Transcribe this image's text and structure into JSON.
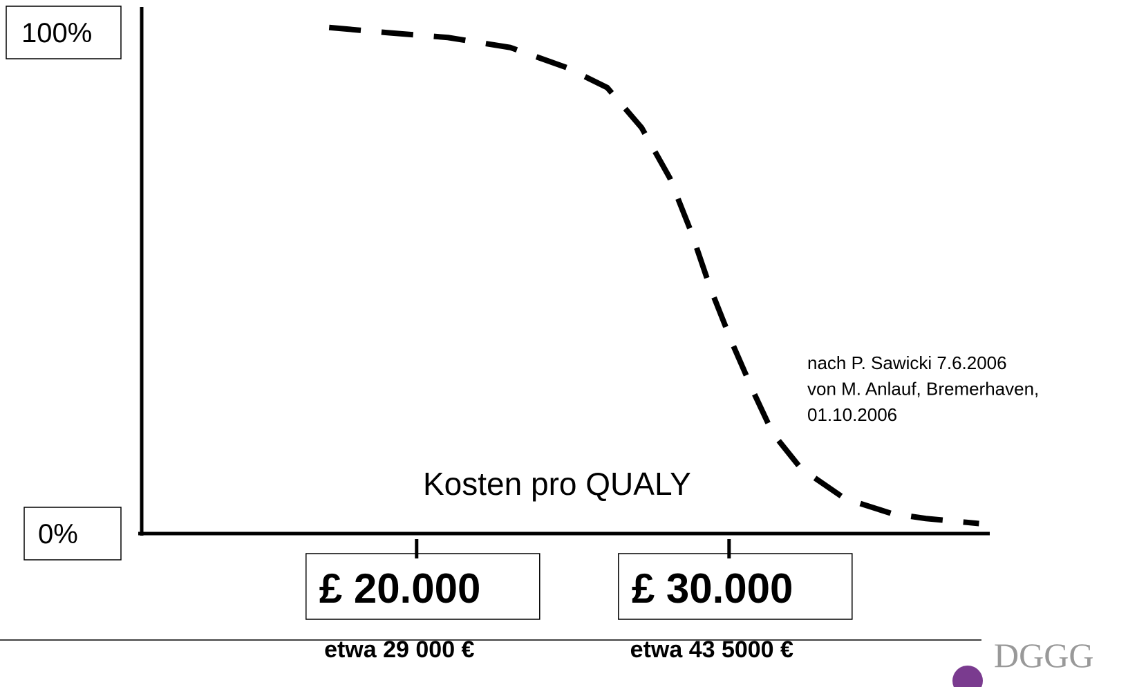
{
  "chart_data": {
    "type": "line",
    "x_label": "Kosten pro QUALY",
    "x": [
      17200,
      19000,
      21000,
      23000,
      24800,
      26100,
      27200,
      28100,
      28800,
      29400,
      30100,
      30800,
      31400,
      32300,
      33700,
      35200,
      36300,
      38000
    ],
    "values": [
      101,
      100,
      99,
      97,
      93,
      89,
      81,
      71,
      60,
      49,
      38,
      28,
      20,
      13,
      7,
      4,
      3,
      2
    ],
    "color": "#000000",
    "dashed": true,
    "xlim": [
      11200,
      38300
    ],
    "ylim": [
      0,
      100
    ],
    "xticks": [
      {
        "value": 20000,
        "label": "£ 20.000"
      },
      {
        "value": 30000,
        "label": "£ 30.000"
      }
    ],
    "xtick_sublabels": [
      "etwa 29 000 €",
      "etwa 43 5000 €"
    ],
    "yticks": [
      {
        "value": 0,
        "label": "0%"
      },
      {
        "value": 100,
        "label": "100%"
      }
    ],
    "annotation": [
      "nach P. Sawicki 7.6.2006",
      "von M. Anlauf, Bremerhaven,",
      "01.10.2006"
    ],
    "logo": "DGGG"
  }
}
